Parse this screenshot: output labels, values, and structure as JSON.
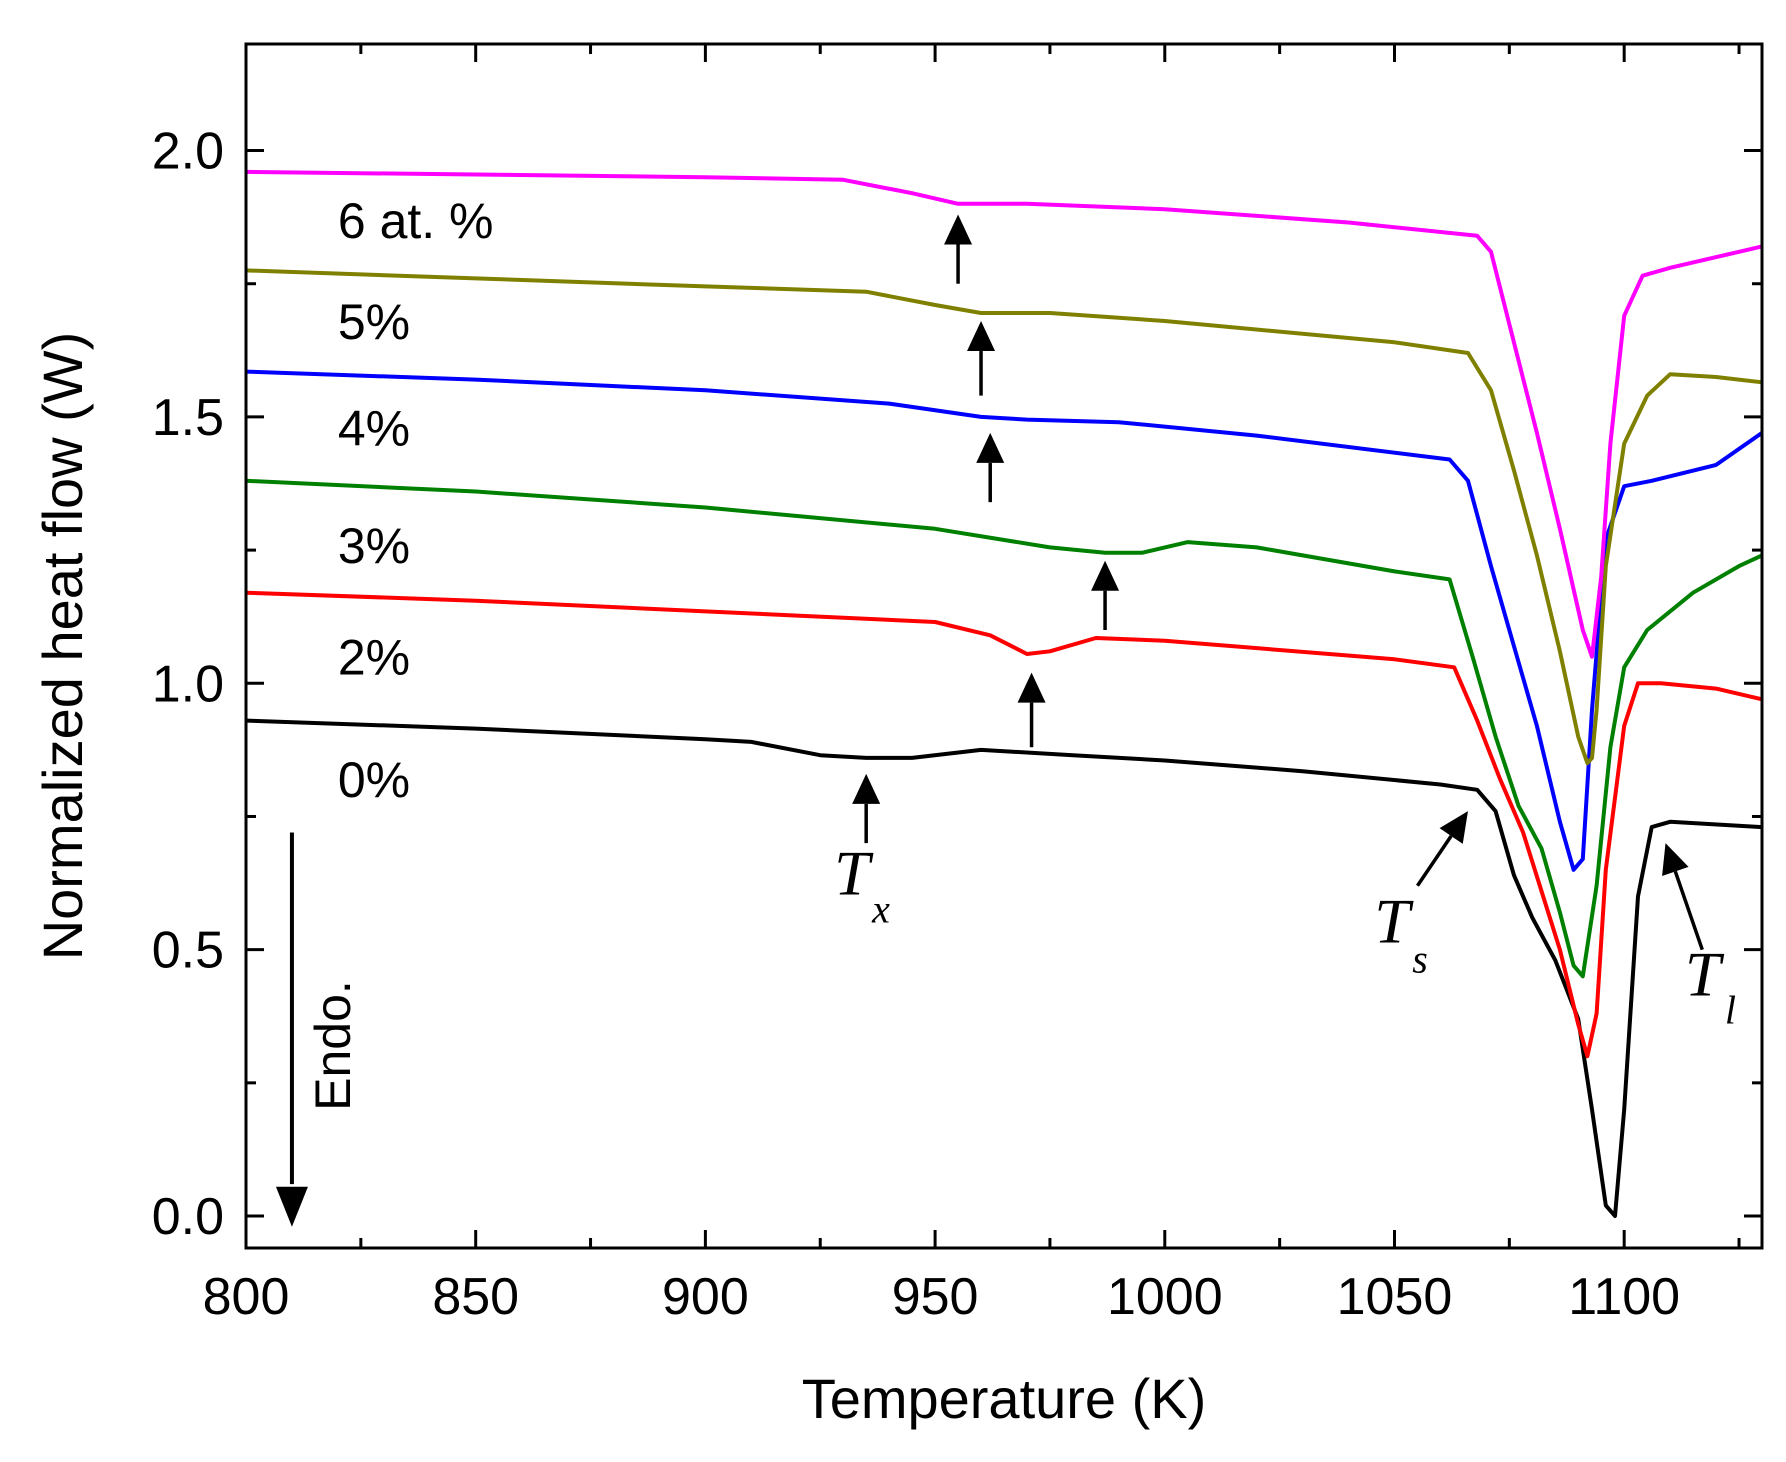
{
  "chart_data": {
    "type": "line",
    "xlabel": "Temperature (K)",
    "ylabel": "Normalized heat flow (W)",
    "xlim": [
      800,
      1130
    ],
    "ylim": [
      -0.06,
      2.2
    ],
    "xticks": [
      800,
      850,
      900,
      950,
      1000,
      1050,
      1100
    ],
    "yticks": [
      0.0,
      0.5,
      1.0,
      1.5,
      2.0
    ],
    "xtick_labels": [
      "800",
      "850",
      "900",
      "950",
      "1000",
      "1050",
      "1100"
    ],
    "ytick_labels": [
      "0.0",
      "0.5",
      "1.0",
      "1.5",
      "2.0"
    ],
    "grid": false,
    "series": [
      {
        "name": "0%",
        "color": "#000000",
        "label_pos": [
          820,
          0.82
        ],
        "x": [
          800,
          850,
          900,
          910,
          925,
          935,
          945,
          960,
          980,
          1000,
          1030,
          1060,
          1068,
          1072,
          1076,
          1080,
          1085,
          1090,
          1093,
          1096,
          1098,
          1100,
          1103,
          1106,
          1110,
          1130
        ],
        "y": [
          0.93,
          0.915,
          0.895,
          0.89,
          0.865,
          0.86,
          0.86,
          0.875,
          0.865,
          0.855,
          0.835,
          0.81,
          0.8,
          0.76,
          0.64,
          0.56,
          0.48,
          0.37,
          0.2,
          0.02,
          0.0,
          0.2,
          0.6,
          0.73,
          0.74,
          0.73
        ]
      },
      {
        "name": "2%",
        "color": "#ff0000",
        "label_pos": [
          820,
          1.05
        ],
        "x": [
          800,
          850,
          900,
          950,
          962,
          970,
          975,
          985,
          1000,
          1050,
          1063,
          1068,
          1073,
          1078,
          1082,
          1086,
          1090,
          1092,
          1094,
          1096,
          1100,
          1103,
          1108,
          1120,
          1130
        ],
        "y": [
          1.17,
          1.155,
          1.135,
          1.115,
          1.09,
          1.055,
          1.06,
          1.085,
          1.08,
          1.045,
          1.03,
          0.93,
          0.82,
          0.72,
          0.61,
          0.5,
          0.36,
          0.3,
          0.38,
          0.65,
          0.92,
          1.0,
          1.0,
          0.99,
          0.97
        ]
      },
      {
        "name": "3%",
        "color": "#008000",
        "label_pos": [
          820,
          1.26
        ],
        "x": [
          800,
          850,
          900,
          950,
          975,
          987,
          995,
          1005,
          1020,
          1050,
          1062,
          1067,
          1072,
          1077,
          1082,
          1086,
          1089,
          1091,
          1094,
          1097,
          1100,
          1105,
          1115,
          1125,
          1130
        ],
        "y": [
          1.38,
          1.36,
          1.33,
          1.29,
          1.255,
          1.245,
          1.245,
          1.265,
          1.255,
          1.21,
          1.195,
          1.05,
          0.9,
          0.77,
          0.69,
          0.57,
          0.47,
          0.45,
          0.62,
          0.88,
          1.03,
          1.1,
          1.17,
          1.22,
          1.24
        ]
      },
      {
        "name": "4%",
        "color": "#0000ff",
        "label_pos": [
          820,
          1.48
        ],
        "x": [
          800,
          850,
          900,
          940,
          960,
          970,
          990,
          1020,
          1062,
          1066,
          1071,
          1076,
          1081,
          1086,
          1089,
          1091,
          1093,
          1096,
          1100,
          1106,
          1120,
          1130
        ],
        "y": [
          1.585,
          1.57,
          1.55,
          1.525,
          1.5,
          1.495,
          1.49,
          1.465,
          1.42,
          1.38,
          1.22,
          1.07,
          0.92,
          0.74,
          0.65,
          0.67,
          0.95,
          1.27,
          1.37,
          1.38,
          1.41,
          1.47
        ]
      },
      {
        "name": "5%",
        "color": "#808000",
        "label_pos": [
          820,
          1.68
        ],
        "x": [
          800,
          850,
          900,
          935,
          950,
          960,
          975,
          1000,
          1050,
          1066,
          1071,
          1076,
          1081,
          1086,
          1090,
          1092,
          1093,
          1094,
          1096,
          1100,
          1105,
          1110,
          1120,
          1130
        ],
        "y": [
          1.775,
          1.76,
          1.745,
          1.735,
          1.71,
          1.695,
          1.695,
          1.68,
          1.64,
          1.62,
          1.55,
          1.4,
          1.24,
          1.06,
          0.9,
          0.85,
          0.86,
          0.95,
          1.22,
          1.45,
          1.54,
          1.58,
          1.575,
          1.565
        ]
      },
      {
        "name": "6 at. %",
        "color": "#ff00ff",
        "label_pos": [
          820,
          1.87
        ],
        "x": [
          800,
          850,
          900,
          930,
          945,
          955,
          970,
          1000,
          1040,
          1068,
          1071,
          1076,
          1081,
          1086,
          1091,
          1093,
          1095,
          1097,
          1100,
          1104,
          1110,
          1115,
          1125,
          1130
        ],
        "y": [
          1.96,
          1.955,
          1.95,
          1.945,
          1.92,
          1.9,
          1.9,
          1.89,
          1.865,
          1.84,
          1.81,
          1.64,
          1.47,
          1.29,
          1.1,
          1.05,
          1.2,
          1.45,
          1.69,
          1.765,
          1.78,
          1.79,
          1.81,
          1.82
        ]
      }
    ],
    "annotations": [
      {
        "type": "arrow",
        "x": 955,
        "y_from": 1.75,
        "y_to": 1.88
      },
      {
        "type": "arrow",
        "x": 960,
        "y_from": 1.54,
        "y_to": 1.68
      },
      {
        "type": "arrow",
        "x": 962,
        "y_from": 1.34,
        "y_to": 1.47
      },
      {
        "type": "arrow",
        "x": 987,
        "y_from": 1.1,
        "y_to": 1.23
      },
      {
        "type": "arrow",
        "x": 971,
        "y_from": 0.88,
        "y_to": 1.02
      },
      {
        "type": "arrow",
        "x": 935,
        "y_from": 0.7,
        "y_to": 0.83
      },
      {
        "type": "arrow-diag",
        "x_from": 1055,
        "y_from": 0.62,
        "x_to": 1066,
        "y_to": 0.76
      },
      {
        "type": "arrow-diag",
        "x_from": 1117,
        "y_from": 0.5,
        "x_to": 1109,
        "y_to": 0.7
      }
    ],
    "labels": {
      "tx": {
        "main": "T",
        "sub": "x"
      },
      "ts": {
        "main": "T",
        "sub": "s"
      },
      "tl": {
        "main": "T",
        "sub": "l"
      },
      "endo": "Endo."
    }
  }
}
